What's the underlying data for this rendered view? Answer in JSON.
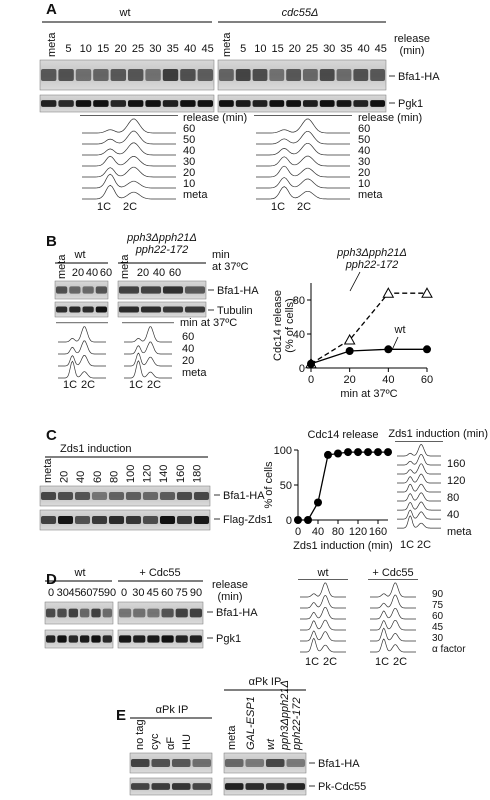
{
  "panels": {
    "A": {
      "label": "A",
      "strains": [
        "wt",
        "cdc55Δ"
      ],
      "lanes": [
        [
          "meta",
          "5",
          "10",
          "15",
          "20",
          "25",
          "30",
          "35",
          "40",
          "45"
        ],
        [
          "meta",
          "5",
          "10",
          "15",
          "20",
          "25",
          "30",
          "35",
          "40",
          "45"
        ]
      ],
      "time_label": [
        "release",
        "(min)"
      ],
      "bands": [
        "Bfa1-HA",
        "Pgk1"
      ],
      "facs": [
        {
          "header": "release (min)",
          "rows": [
            "60",
            "50",
            "40",
            "30",
            "20",
            "10",
            "meta"
          ],
          "dna": [
            "1C",
            "2C"
          ]
        },
        {
          "header": "release (min)",
          "rows": [
            "60",
            "50",
            "40",
            "30",
            "20",
            "10",
            "meta"
          ],
          "dna": [
            "1C",
            "2C"
          ]
        }
      ]
    },
    "B": {
      "label": "B",
      "strains": [
        "wt",
        "pph3Δpph21Δ pph22-172"
      ],
      "lanes": [
        [
          "meta",
          "20",
          "40",
          "60"
        ],
        [
          "meta",
          "20",
          "40",
          "60"
        ]
      ],
      "time_label": [
        "min",
        "at 37ºC"
      ],
      "bands": [
        "Bfa1-HA",
        "Tubulin"
      ],
      "facs": {
        "header": "min at 37ºC",
        "rows": [
          "60",
          "40",
          "20",
          "meta"
        ],
        "dna": [
          [
            "1C",
            "2C"
          ],
          [
            "1C",
            "2C"
          ]
        ]
      }
    },
    "C": {
      "label": "C",
      "strain": "Zds1 induction",
      "lanes": [
        "meta",
        "20",
        "40",
        "60",
        "80",
        "100",
        "120",
        "140",
        "160",
        "180"
      ],
      "bands": [
        "Bfa1-HA",
        "Flag-Zds1"
      ],
      "facs": {
        "header": "Zds1 induction (min)",
        "rows": [
          "160",
          "120",
          "80",
          "40",
          "meta"
        ],
        "dna": [
          "1C",
          "2C"
        ]
      }
    },
    "D": {
      "label": "D",
      "strains": [
        "wt",
        "+ Cdc55"
      ],
      "lanes": [
        [
          "0",
          "30",
          "45",
          "60",
          "75",
          "90"
        ],
        [
          "0",
          "30",
          "45",
          "60",
          "75",
          "90"
        ]
      ],
      "time_label": [
        "release",
        "(min)"
      ],
      "bands": [
        "Bfa1-HA",
        "Pgk1"
      ],
      "facs": {
        "strains": [
          "wt",
          "+ Cdc55"
        ],
        "rows": [
          "90",
          "75",
          "60",
          "45",
          "30",
          "α factor"
        ],
        "dna": [
          [
            "1C",
            "2C"
          ],
          [
            "1C",
            "2C"
          ]
        ]
      }
    },
    "E": {
      "label": "E",
      "ip": [
        "αPk IP",
        "αPk IP"
      ],
      "lanes": [
        [
          "no tag",
          "cyc",
          "αF",
          "HU"
        ],
        [
          "meta",
          "GAL-ESP1",
          "wt",
          "pph3Δpph21Δ pph22-172"
        ]
      ],
      "bands": [
        "Bfa1-HA",
        "Pk-Cdc55"
      ]
    }
  },
  "chart_data": [
    {
      "type": "line",
      "ylabel": [
        "Cdc14 release",
        "(% of cells)"
      ],
      "xlabel": "min at 37ºC",
      "x": [
        0,
        20,
        40,
        60
      ],
      "xlim": [
        0,
        60
      ],
      "xticks": [
        0,
        20,
        40,
        60
      ],
      "ylim": [
        0,
        100
      ],
      "yticks": [
        0,
        40,
        80
      ],
      "series": [
        {
          "name": "pph3Δpph21Δ pph22-172",
          "color": "#000000",
          "line_style": "dashed",
          "marker": "triangle",
          "values": [
            5,
            33,
            88,
            88
          ]
        },
        {
          "name": "wt",
          "color": "#000000",
          "line_style": "solid",
          "marker": "circle",
          "values": [
            5,
            20,
            22,
            22
          ]
        }
      ]
    },
    {
      "type": "line",
      "title": "Cdc14 release",
      "ylabel": "% of cells",
      "xlabel": "Zds1 induction (min)",
      "x": [
        0,
        20,
        40,
        60,
        80,
        100,
        120,
        140,
        160,
        180
      ],
      "xlim": [
        0,
        180
      ],
      "xticks": [
        0,
        40,
        80,
        120,
        160
      ],
      "ylim": [
        0,
        100
      ],
      "yticks": [
        0,
        50,
        100
      ],
      "color": "#000000",
      "marker": "circle",
      "line_style": "solid",
      "values": [
        0,
        0,
        25,
        93,
        95,
        97,
        97,
        97,
        97,
        97
      ]
    }
  ]
}
